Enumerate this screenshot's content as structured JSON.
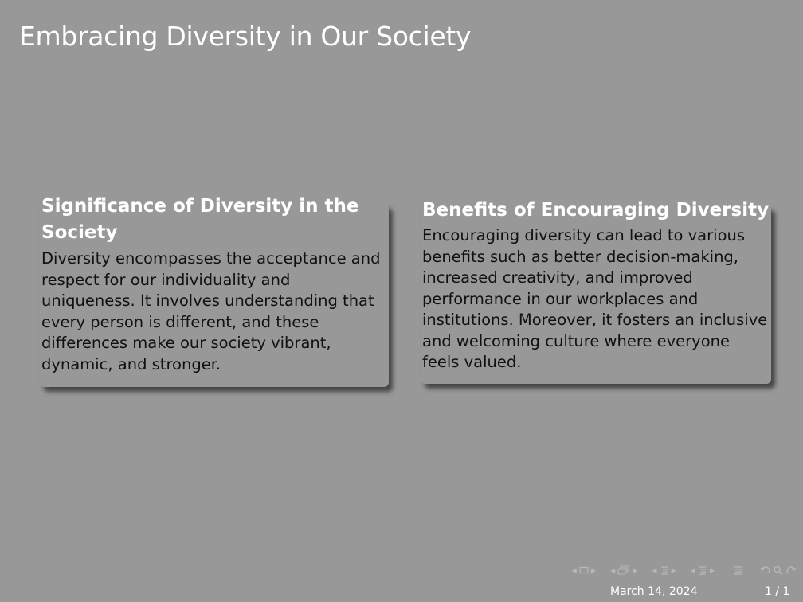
{
  "slide": {
    "title": "Embracing Diversity in Our Society"
  },
  "blocks": [
    {
      "title": "Significance of Diversity in the Society",
      "body": "Diversity encompasses the acceptance and respect for our individuality and uniqueness. It involves understanding that every person is different, and these differences make our society vibrant, dynamic, and stronger."
    },
    {
      "title": "Benefits of Encouraging Diversity",
      "body": "Encouraging diversity can lead to various benefits such as better decision-making, increased creativity, and improved performance in our workplaces and institutions. Moreover, it fosters an inclusive and welcoming culture where everyone feels valued."
    }
  ],
  "footer": {
    "date": "March 14, 2024",
    "page": "1 / 1"
  },
  "navigation": {
    "icons": [
      "frame-prev-arrow",
      "frame-icon",
      "frame-next-arrow",
      "subsection-prev-arrow",
      "subsection-icon",
      "subsection-next-arrow",
      "section-prev-arrow",
      "section-icon",
      "section-next-arrow",
      "presentation-prev-arrow",
      "presentation-icon",
      "presentation-next-arrow",
      "toc-icon",
      "back-icon",
      "search-icon",
      "forward-icon"
    ],
    "color": "#b8b8b8"
  },
  "colors": {
    "background": "#989898",
    "title": "#ffffff",
    "body_text": "#111111"
  }
}
